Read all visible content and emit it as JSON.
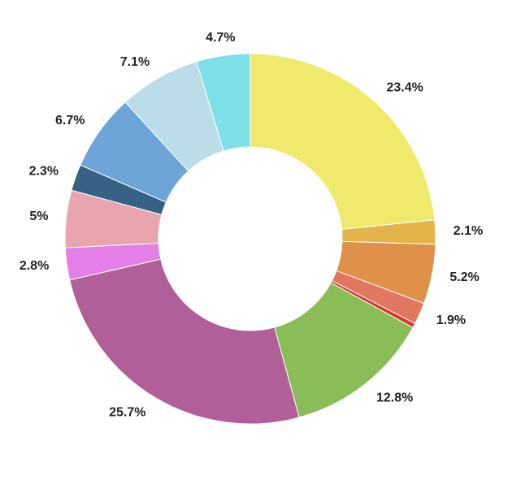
{
  "chart_data": {
    "type": "pie",
    "variant": "donut",
    "title": "",
    "start": "top, clockwise",
    "slices": [
      {
        "value": 23.4,
        "label": "23.4%",
        "color": "#efe96c"
      },
      {
        "value": 2.1,
        "label": "2.1%",
        "color": "#e4b44b"
      },
      {
        "value": 5.2,
        "label": "5.2%",
        "color": "#df9049"
      },
      {
        "value": 1.9,
        "label": "1.9%",
        "color": "#e17661"
      },
      {
        "value": 0.4,
        "label": "",
        "color": "#d83b2e"
      },
      {
        "value": 12.8,
        "label": "12.8%",
        "color": "#8abd57"
      },
      {
        "value": 25.7,
        "label": "25.7%",
        "color": "#b05f98"
      },
      {
        "value": 2.8,
        "label": "2.8%",
        "color": "#e47fe7"
      },
      {
        "value": 5.0,
        "label": "5%",
        "color": "#e8a5ad"
      },
      {
        "value": 2.3,
        "label": "2.3%",
        "color": "#386285"
      },
      {
        "value": 6.7,
        "label": "6.7%",
        "color": "#6ea5d8"
      },
      {
        "value": 7.1,
        "label": "7.1%",
        "color": "#badde9"
      },
      {
        "value": 4.7,
        "label": "4.7%",
        "color": "#7fdfe9"
      }
    ]
  }
}
